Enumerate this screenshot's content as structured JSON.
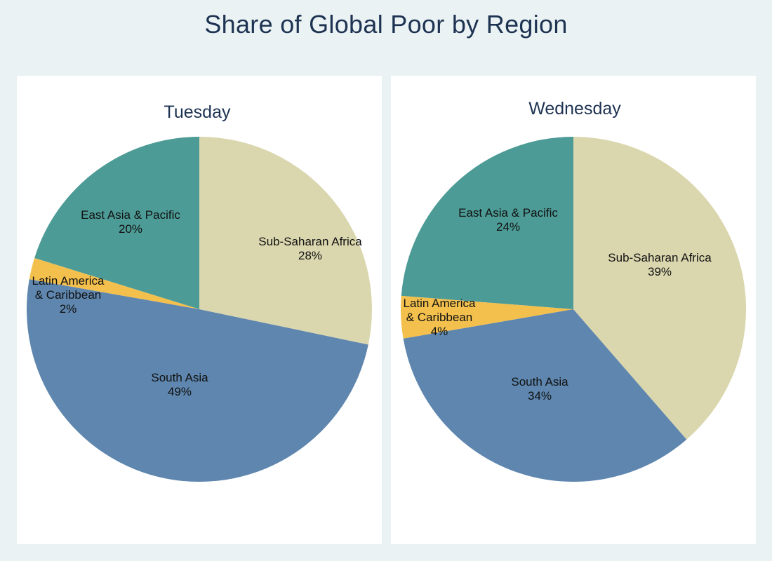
{
  "title": "Share of Global Poor by Region",
  "chart_data": [
    {
      "type": "pie",
      "title": "Tuesday",
      "categories": [
        "Sub-Saharan Africa",
        "South Asia",
        "Latin America & Caribbean",
        "East Asia & Pacific"
      ],
      "values": [
        28,
        49,
        2,
        20
      ],
      "labels": [
        {
          "lines": [
            "Sub-Saharan Africa",
            "28%"
          ]
        },
        {
          "lines": [
            "South Asia",
            "49%"
          ]
        },
        {
          "lines": [
            "Latin America",
            "& Caribbean",
            "2%"
          ]
        },
        {
          "lines": [
            "East Asia & Pacific",
            "20%"
          ]
        }
      ],
      "colors": [
        "#dad6ae",
        "#5e86ae",
        "#f3c04e",
        "#4d9b96"
      ],
      "legend": "none"
    },
    {
      "type": "pie",
      "title": "Wednesday",
      "categories": [
        "Sub-Saharan Africa",
        "South Asia",
        "Latin America & Caribbean",
        "East Asia & Pacific"
      ],
      "values": [
        39,
        34,
        4,
        24
      ],
      "labels": [
        {
          "lines": [
            "Sub-Saharan Africa",
            "39%"
          ]
        },
        {
          "lines": [
            "South Asia",
            "34%"
          ]
        },
        {
          "lines": [
            "Latin America",
            "& Caribbean",
            "4%"
          ]
        },
        {
          "lines": [
            "East Asia & Pacific",
            "24%"
          ]
        }
      ],
      "colors": [
        "#dad6ae",
        "#5e86ae",
        "#f3c04e",
        "#4d9b96"
      ],
      "legend": "none"
    }
  ]
}
